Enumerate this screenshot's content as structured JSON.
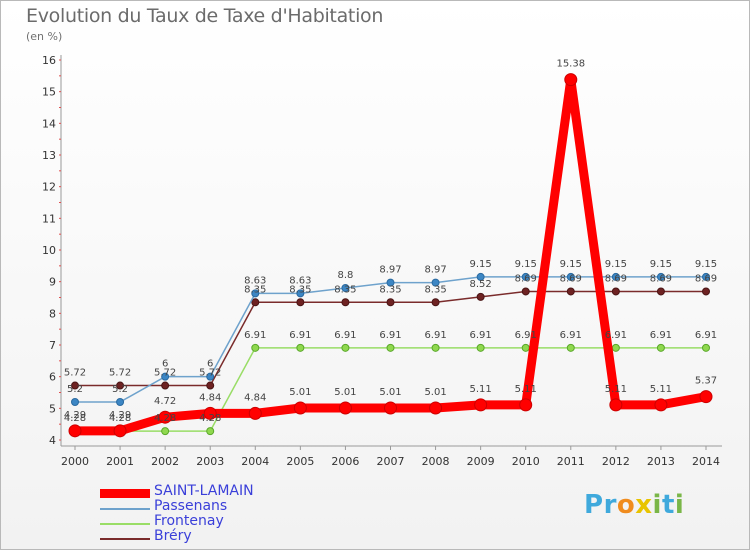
{
  "header": {
    "title": "Evolution du Taux de Taxe d'Habitation",
    "unit": "(en %)"
  },
  "logo": {
    "text": "Proxiti",
    "letters": [
      {
        "ch": "P",
        "color": "#3fa9dc"
      },
      {
        "ch": "r",
        "color": "#3fa9dc"
      },
      {
        "ch": "o",
        "color": "#f08c1e"
      },
      {
        "ch": "x",
        "color": "#e8c400"
      },
      {
        "ch": "i",
        "color": "#7ab648"
      },
      {
        "ch": "t",
        "color": "#3fa9dc"
      },
      {
        "ch": "i",
        "color": "#7ab648"
      }
    ]
  },
  "chart_data": {
    "type": "line",
    "x": [
      "2000",
      "2001",
      "2002",
      "2003",
      "2004",
      "2005",
      "2006",
      "2007",
      "2008",
      "2009",
      "2010",
      "2011",
      "2012",
      "2013",
      "2014"
    ],
    "ylim": [
      4,
      16
    ],
    "yticks": [
      "4",
      "5",
      "6",
      "7",
      "8",
      "9",
      "10",
      "11",
      "12",
      "13",
      "14",
      "15",
      "16"
    ],
    "grid": false,
    "legend_position": "bottom-left",
    "series": [
      {
        "name": "SAINT-LAMAIN",
        "color": "#ff0000",
        "values": [
          4.29,
          4.29,
          4.72,
          4.84,
          4.84,
          5.01,
          5.01,
          5.01,
          5.01,
          5.11,
          5.11,
          15.38,
          5.11,
          5.11,
          5.37
        ],
        "labels": [
          "4.29",
          "4.29",
          "4.72",
          "4.84",
          "4.84",
          "5.01",
          "5.01",
          "5.01",
          "5.01",
          "5.11",
          "5.11",
          "15.38",
          "5.11",
          "5.11",
          "5.37"
        ]
      },
      {
        "name": "Passenans",
        "color": "#6ea2cc",
        "values": [
          5.2,
          5.2,
          6,
          6,
          8.63,
          8.63,
          8.8,
          8.97,
          8.97,
          9.15,
          9.15,
          9.15,
          9.15,
          9.15,
          9.15
        ],
        "labels": [
          "5.2",
          "5.2",
          "6",
          "6",
          "8.63",
          "8.63",
          "8.8",
          "8.97",
          "8.97",
          "9.15",
          "9.15",
          "9.15",
          "9.15",
          "9.15",
          "9.15"
        ]
      },
      {
        "name": "Frontenay",
        "color": "#99dd66",
        "values": [
          4.28,
          4.28,
          4.28,
          4.28,
          6.91,
          6.91,
          6.91,
          6.91,
          6.91,
          6.91,
          6.91,
          6.91,
          6.91,
          6.91,
          6.91
        ],
        "labels": [
          "4.28",
          "4.28",
          "4.28",
          "4.28",
          "6.91",
          "6.91",
          "6.91",
          "6.91",
          "6.91",
          "6.91",
          "6.91",
          "6.91",
          "6.91",
          "6.91",
          "6.91"
        ]
      },
      {
        "name": "Bréry",
        "color": "#7a2b2b",
        "values": [
          5.72,
          5.72,
          5.72,
          5.72,
          8.35,
          8.35,
          8.35,
          8.35,
          8.35,
          8.52,
          8.69,
          8.69,
          8.69,
          8.69,
          8.69
        ],
        "labels": [
          "5.72",
          "5.72",
          "5.72",
          "5.72",
          "8.35",
          "8.35",
          "8.35",
          "8.35",
          "8.35",
          "8.52",
          "8.69",
          "8.69",
          "8.69",
          "8.69",
          "8.69"
        ]
      }
    ]
  }
}
